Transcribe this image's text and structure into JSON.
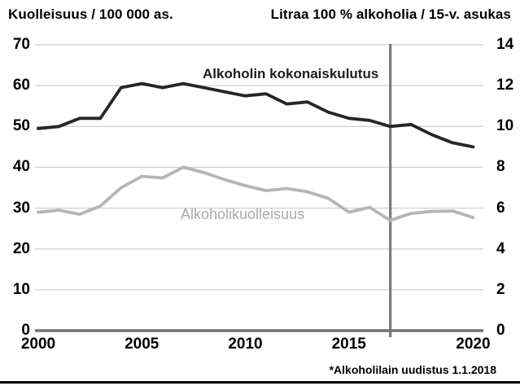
{
  "figure": {
    "left_axis_title": "Kuolleisuus / 100 000 as.",
    "right_axis_title": "Litraa 100 % alkoholia / 15-v. asukas",
    "annotation_note": "*Alkoholilain uudistus 1.1.2018"
  },
  "chart_data": {
    "type": "line",
    "x": [
      2000,
      2001,
      2002,
      2003,
      2004,
      2005,
      2006,
      2007,
      2008,
      2009,
      2010,
      2011,
      2012,
      2013,
      2014,
      2015,
      2016,
      2017,
      2018,
      2019,
      2020,
      2021
    ],
    "x_tick_labels": [
      "2000",
      "2005",
      "2010",
      "2015",
      "2020"
    ],
    "left_axis": {
      "title": "Kuolleisuus / 100 000 as.",
      "range": [
        0,
        70
      ],
      "tick_labels": [
        "0",
        "10",
        "20",
        "30",
        "40",
        "50",
        "60",
        "70"
      ]
    },
    "right_axis": {
      "title": "Litraa 100 % alkoholia / 15-v. asukas",
      "range": [
        0,
        14
      ],
      "tick_labels": [
        "0",
        "2",
        "4",
        "6",
        "8",
        "10",
        "12",
        "14"
      ]
    },
    "grid": true,
    "legend_position": "inline-labels",
    "series": [
      {
        "name": "Alkoholin kokonaiskulutus",
        "axis": "right",
        "unit": "litres of 100% alcohol per inhabitant aged 15+",
        "color": "#262626",
        "values": [
          9.9,
          10.0,
          10.4,
          10.4,
          11.9,
          12.1,
          11.9,
          12.1,
          11.9,
          11.7,
          11.5,
          11.6,
          11.1,
          11.2,
          10.7,
          10.4,
          10.3,
          10.0,
          10.1,
          9.6,
          9.2,
          9.0
        ]
      },
      {
        "name": "Alkoholikuolleisuus",
        "axis": "left",
        "unit": "deaths per 100 000 inhabitants",
        "color": "#b5b5b5",
        "values": [
          29.0,
          29.5,
          28.5,
          30.5,
          35.0,
          37.8,
          37.4,
          40.0,
          38.7,
          37.0,
          35.5,
          34.3,
          34.8,
          34.0,
          32.4,
          29.0,
          30.2,
          27.0,
          28.7,
          29.2,
          29.3,
          27.7
        ]
      }
    ],
    "vline": {
      "x": 2017,
      "color": "#7a7a7a",
      "label": "*Alkoholilain uudistus 1.1.2018"
    }
  },
  "colors": {
    "background": "#ffffff",
    "gridline": "#d3d3d3",
    "axis_line": "#737373",
    "consumption_line": "#262626",
    "mortality_line": "#b5b5b5",
    "mortality_label": "#a9a9a9",
    "bottom_rule": "#000000"
  }
}
